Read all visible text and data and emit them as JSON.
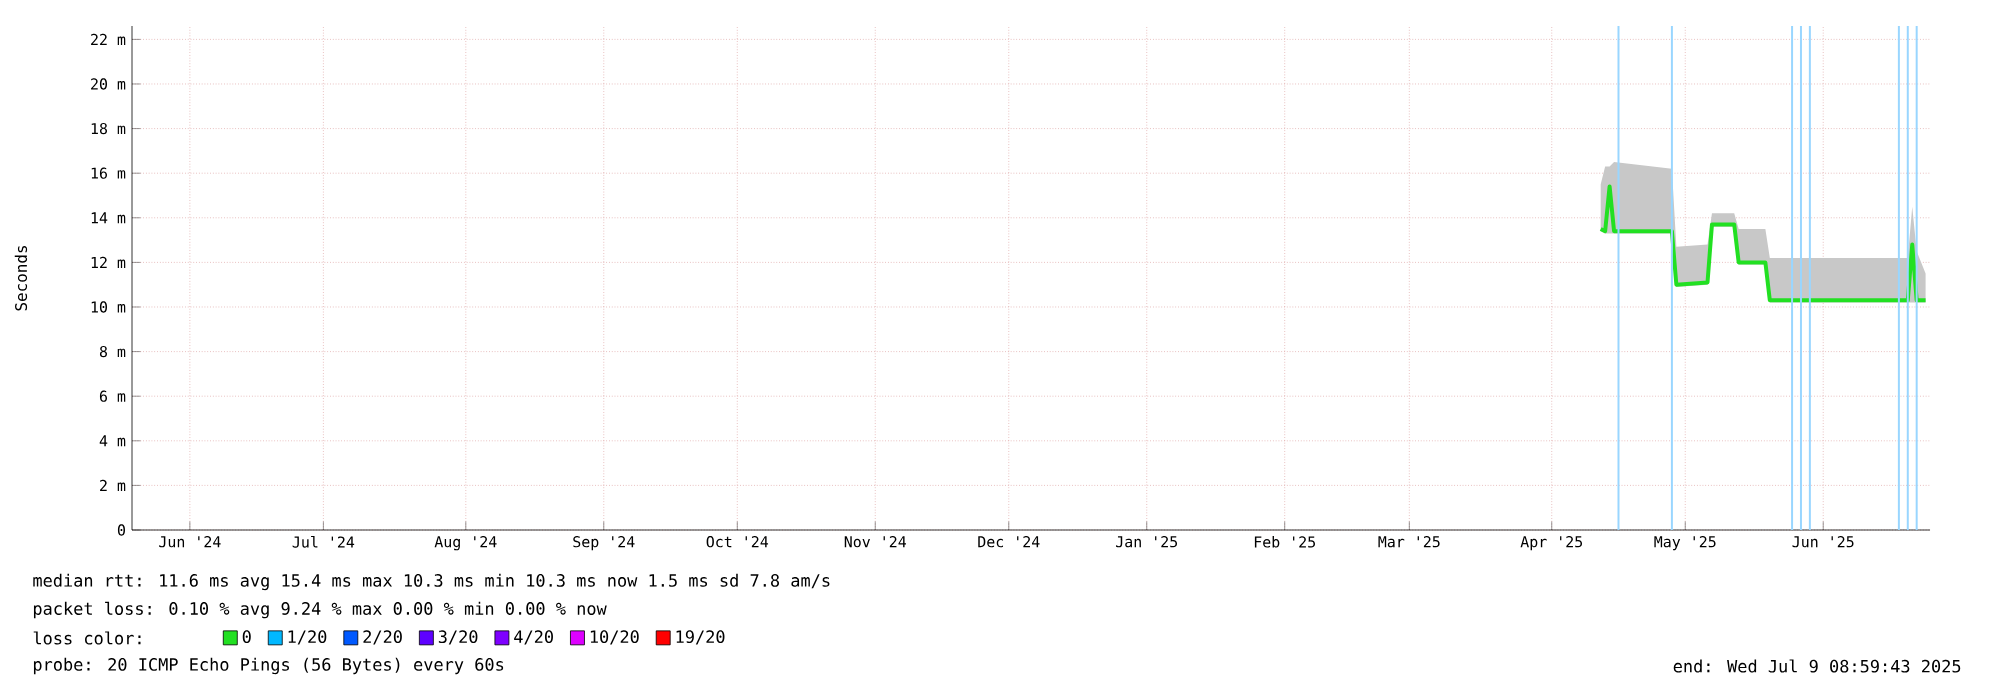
{
  "chart_data": {
    "type": "line",
    "ylabel": "Seconds",
    "x": [
      "2025-04-27",
      "2025-04-28",
      "2025-04-29",
      "2025-04-30",
      "2025-05-13",
      "2025-05-14",
      "2025-05-21",
      "2025-05-22",
      "2025-05-27",
      "2025-05-28",
      "2025-06-03",
      "2025-06-04",
      "2025-07-05",
      "2025-07-06",
      "2025-07-07",
      "2025-07-09"
    ],
    "series": [
      {
        "name": "0",
        "color": "#22e022",
        "values": [
          13.5,
          13.4,
          15.4,
          13.4,
          13.4,
          11.0,
          11.1,
          13.7,
          13.7,
          12.0,
          12.0,
          10.3,
          10.3,
          12.8,
          10.3,
          10.3
        ],
        "lower": [
          13.4,
          13.3,
          13.3,
          13.3,
          13.3,
          10.9,
          11.0,
          13.6,
          13.6,
          11.9,
          11.9,
          10.2,
          10.2,
          10.2,
          10.2,
          10.2
        ],
        "upper": [
          15.5,
          16.3,
          16.3,
          16.5,
          16.2,
          12.7,
          12.8,
          14.2,
          14.2,
          13.5,
          13.5,
          12.2,
          12.2,
          14.5,
          12.5,
          11.5
        ]
      },
      {
        "name": "1/20",
        "color": "#00b8ff",
        "values": [
          null,
          null,
          null,
          null,
          null,
          null,
          null,
          null,
          null,
          null,
          null,
          null,
          null,
          null,
          null,
          null
        ]
      },
      {
        "name": "2/20",
        "color": "#0059ff",
        "values": [
          null,
          null,
          null,
          null,
          null,
          null,
          null,
          null,
          null,
          null,
          null,
          null,
          null,
          null,
          null,
          null
        ]
      },
      {
        "name": "3/20",
        "color": "#5e00ff",
        "values": [
          null,
          null,
          null,
          null,
          null,
          null,
          null,
          null,
          null,
          null,
          null,
          null,
          null,
          null,
          null,
          null
        ]
      },
      {
        "name": "4/20",
        "color": "#7e00ff",
        "values": [
          null,
          null,
          null,
          null,
          null,
          null,
          null,
          null,
          null,
          null,
          null,
          null,
          null,
          null,
          null,
          null
        ]
      },
      {
        "name": "10/20",
        "color": "#dd00ff",
        "values": [
          null,
          null,
          null,
          null,
          null,
          null,
          null,
          null,
          null,
          null,
          null,
          null,
          null,
          null,
          null,
          null
        ]
      },
      {
        "name": "19/20",
        "color": "#ff0000",
        "values": [
          null,
          null,
          null,
          null,
          null,
          null,
          null,
          null,
          null,
          null,
          null,
          null,
          null,
          null,
          null,
          null
        ]
      }
    ],
    "xlim": [
      "2024-06-01",
      "2025-07-10"
    ],
    "xticks": [
      {
        "value": "2024-06-14",
        "label": "Jun '24"
      },
      {
        "value": "2024-07-14",
        "label": "Jul '24"
      },
      {
        "value": "2024-08-15",
        "label": "Aug '24"
      },
      {
        "value": "2024-09-15",
        "label": "Sep '24"
      },
      {
        "value": "2024-10-15",
        "label": "Oct '24"
      },
      {
        "value": "2024-11-15",
        "label": "Nov '24"
      },
      {
        "value": "2024-12-15",
        "label": "Dec '24"
      },
      {
        "value": "2025-01-15",
        "label": "Jan '25"
      },
      {
        "value": "2025-02-15",
        "label": "Feb '25"
      },
      {
        "value": "2025-03-15",
        "label": "Mar '25"
      },
      {
        "value": "2025-04-16",
        "label": "Apr '25"
      },
      {
        "value": "2025-05-16",
        "label": "May '25"
      },
      {
        "value": "2025-06-16",
        "label": "Jun '25"
      }
    ],
    "ylim": [
      0,
      22.6
    ],
    "yticks": [
      0,
      {
        "value": 2,
        "label": "2 m"
      },
      {
        "value": 4,
        "label": "4 m"
      },
      {
        "value": 6,
        "label": "6 m"
      },
      {
        "value": 8,
        "label": "8 m"
      },
      {
        "value": 10,
        "label": "10 m"
      },
      {
        "value": 12,
        "label": "12 m"
      },
      {
        "value": 14,
        "label": "14 m"
      },
      {
        "value": 16,
        "label": "16 m"
      },
      {
        "value": 18,
        "label": "18 m"
      },
      {
        "value": 20,
        "label": "20 m"
      },
      {
        "value": 22,
        "label": "22 m"
      }
    ],
    "ref_lines": [
      {
        "axis": "x",
        "value": "2025-05-01",
        "color": "#99d6ff"
      },
      {
        "axis": "x",
        "value": "2025-05-13",
        "color": "#99d6ff"
      },
      {
        "axis": "x",
        "value": "2025-06-09",
        "color": "#99d6ff"
      },
      {
        "axis": "x",
        "value": "2025-06-11",
        "color": "#99d6ff"
      },
      {
        "axis": "x",
        "value": "2025-06-13",
        "color": "#99d6ff"
      },
      {
        "axis": "x",
        "value": "2025-07-03",
        "color": "#99d6ff"
      },
      {
        "axis": "x",
        "value": "2025-07-05",
        "color": "#99d6ff"
      },
      {
        "axis": "x",
        "value": "2025-07-07",
        "color": "#99d6ff"
      }
    ],
    "grid": true,
    "legend": "bottom",
    "legend_title": "loss color:",
    "annotations": [
      "median rtt:  11.6 ms avg  15.4 ms max  10.3 ms min  10.3 ms now  1.5 ms sd  7.8   am/s",
      "packet loss: 0.10 % avg  9.24 % max  0.00 % min  0.00 % now",
      "probe:       20 ICMP Echo Pings (56 Bytes) every 60s",
      "end: Wed Jul  9 08:59:43 2025"
    ]
  }
}
